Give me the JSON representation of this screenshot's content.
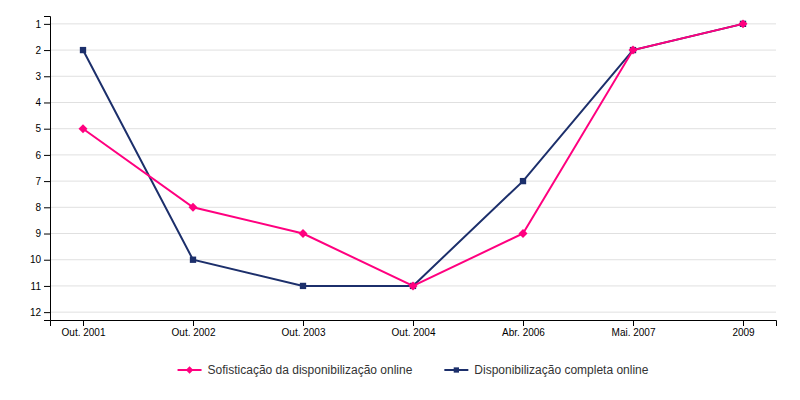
{
  "chart_data": {
    "type": "line",
    "categories": [
      "Out. 2001",
      "Out. 2002",
      "Out. 2003",
      "Out. 2004",
      "Abr. 2006",
      "Mai. 2007",
      "2009"
    ],
    "series": [
      {
        "name": "Sofisticação da disponibilização online",
        "color": "#FF007F",
        "marker": "diamond",
        "values": [
          5,
          8,
          9,
          11,
          9,
          2,
          1
        ]
      },
      {
        "name": "Disponibilização completa online",
        "color": "#1C2F6B",
        "marker": "square",
        "values": [
          2,
          10,
          11,
          11,
          7,
          2,
          1
        ]
      }
    ],
    "ylim": [
      12.3,
      0.7
    ],
    "yticks": [
      1,
      2,
      3,
      4,
      5,
      6,
      7,
      8,
      9,
      10,
      11,
      12
    ],
    "grid": true,
    "legend": "bottom"
  }
}
